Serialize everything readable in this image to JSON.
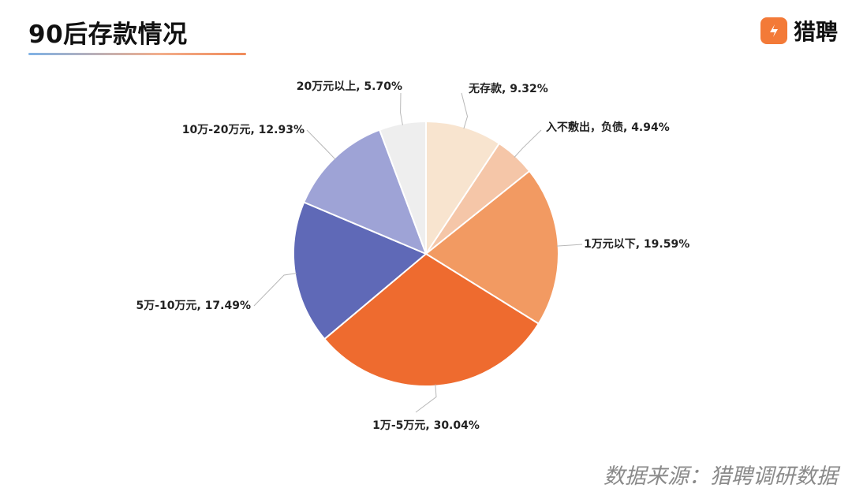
{
  "header": {
    "title": "90后存款情况",
    "brand": "猎聘"
  },
  "footer": {
    "source": "数据来源：猎聘调研数据"
  },
  "colors": {
    "title_underline_start": "#7fb2e6",
    "title_underline_end": "#f08b5a",
    "brand_logo": "#f37a38"
  },
  "chart_data": {
    "type": "pie",
    "start": "12 o'clock",
    "direction": "clockwise",
    "slices": [
      {
        "label": "无存款, 9.32%",
        "name": "无存款",
        "value": 9.32,
        "color": "#f8e4cf"
      },
      {
        "label": "入不敷出，负债, 4.94%",
        "name": "入不敷出，负债",
        "value": 4.94,
        "color": "#f5c6a8"
      },
      {
        "label": "1万元以下, 19.59%",
        "name": "1万元以下",
        "value": 19.59,
        "color": "#f29a62"
      },
      {
        "label": "1万-5万元, 30.04%",
        "name": "1万-5万元",
        "value": 30.04,
        "color": "#ee6b2f"
      },
      {
        "label": "5万-10万元, 17.49%",
        "name": "5万-10万元",
        "value": 17.49,
        "color": "#5f69b7"
      },
      {
        "label": "10万-20万元, 12.93%",
        "name": "10万-20万元",
        "value": 12.93,
        "color": "#9ea3d6"
      },
      {
        "label": "20万元以上, 5.70%",
        "name": "20万元以上",
        "value": 5.7,
        "color": "#eeeeee"
      }
    ]
  }
}
